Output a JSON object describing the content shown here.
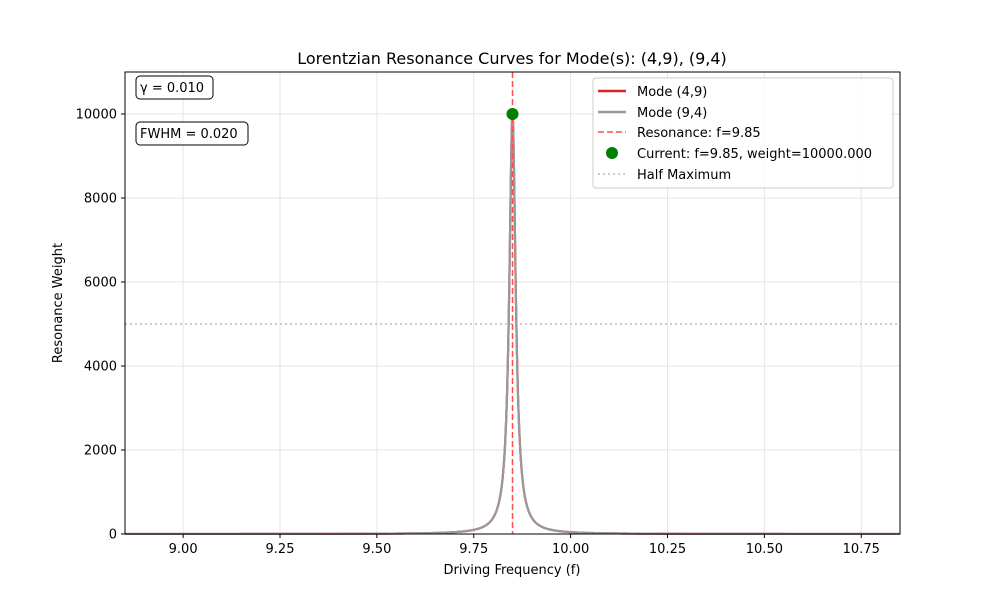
{
  "chart_data": {
    "type": "line",
    "title": "Lorentzian Resonance Curves for Mode(s): (4,9), (9,4)",
    "xlabel": "Driving Frequency (f)",
    "ylabel": "Resonance Weight",
    "xlim": [
      8.85,
      10.85
    ],
    "ylim": [
      0,
      11000
    ],
    "x_ticks": [
      "9.00",
      "9.25",
      "9.50",
      "9.75",
      "10.00",
      "10.25",
      "10.50",
      "10.75"
    ],
    "y_ticks": [
      "0",
      "2000",
      "4000",
      "6000",
      "8000",
      "10000"
    ],
    "grid": true,
    "legend_position": "top-right",
    "resonance_frequency": 9.85,
    "gamma": 0.01,
    "peak_weight": 10000,
    "half_maximum": 5000,
    "series": [
      {
        "name": "Mode (4,9)",
        "color": "#d62728",
        "style": "solid",
        "center": 9.85,
        "gamma": 0.01
      },
      {
        "name": "Mode (9,4)",
        "color": "#999999",
        "style": "solid",
        "center": 9.85,
        "gamma": 0.01
      }
    ],
    "resonance_line": {
      "name": "Resonance: f=9.85",
      "x": 9.85,
      "color": "#ff4d4d",
      "style": "dashed"
    },
    "current_point": {
      "name": "Current: f=9.85, weight=10000.000",
      "x": 9.85,
      "y": 10000,
      "color": "#008000"
    },
    "half_max_line": {
      "name": "Half Maximum",
      "y": 5000,
      "color": "#bbbbbb",
      "style": "dotted"
    },
    "annotations": [
      {
        "text": "γ = 0.010"
      },
      {
        "text": "FWHM = 0.020"
      }
    ]
  }
}
